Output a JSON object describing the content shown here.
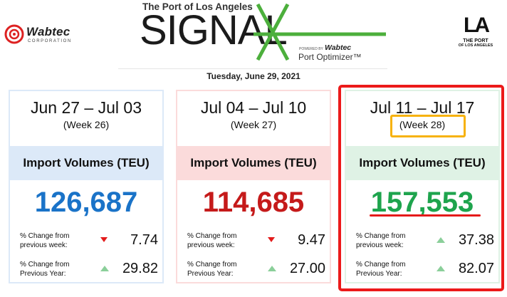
{
  "header": {
    "wabtec": {
      "name": "Wabtec",
      "sub": "CORPORATION"
    },
    "signal": {
      "top": "The Port of Los Angeles",
      "word": "SIGNAL",
      "powered_by": "POWERED BY",
      "powered_brand": "Wabtec",
      "product": "Port Optimizer™"
    },
    "port_logo": {
      "letters": "LA",
      "line1": "THE PORT",
      "line2": "OF LOS ANGELES"
    },
    "date": "Tuesday, June 29, 2021"
  },
  "cards": [
    {
      "range": "Jun 27 – Jul 03",
      "week": "(Week 26)",
      "band": "Import Volumes (TEU)",
      "volume": "126,687",
      "rows": [
        {
          "label": "% Change from previous week:",
          "direction": "down",
          "value": "7.74"
        },
        {
          "label": "% Change from Previous Year:",
          "direction": "up",
          "value": "29.82"
        }
      ]
    },
    {
      "range": "Jul 04 – Jul 10",
      "week": "(Week 27)",
      "band": "Import Volumes (TEU)",
      "volume": "114,685",
      "rows": [
        {
          "label": "% Change from previous week:",
          "direction": "down",
          "value": "9.47"
        },
        {
          "label": "% Change from Previous Year:",
          "direction": "up",
          "value": "27.00"
        }
      ]
    },
    {
      "range": "Jul 11 – Jul 17",
      "week": "(Week 28)",
      "band": "Import Volumes (TEU)",
      "volume": "157,553",
      "rows": [
        {
          "label": "% Change from previous week:",
          "direction": "up",
          "value": "37.38"
        },
        {
          "label": "% Change from Previous Year:",
          "direction": "up",
          "value": "82.07"
        }
      ]
    }
  ],
  "colors": {
    "week26": "#1a73c8",
    "week27": "#c51a1a",
    "week28": "#1ea44d",
    "highlight_frame": "#ec1a1a",
    "week_highlight": "#f7b20b",
    "signal_green": "#4caf3c"
  },
  "icons": {
    "down": "red-down-triangle-icon",
    "up": "green-up-triangle-icon"
  }
}
